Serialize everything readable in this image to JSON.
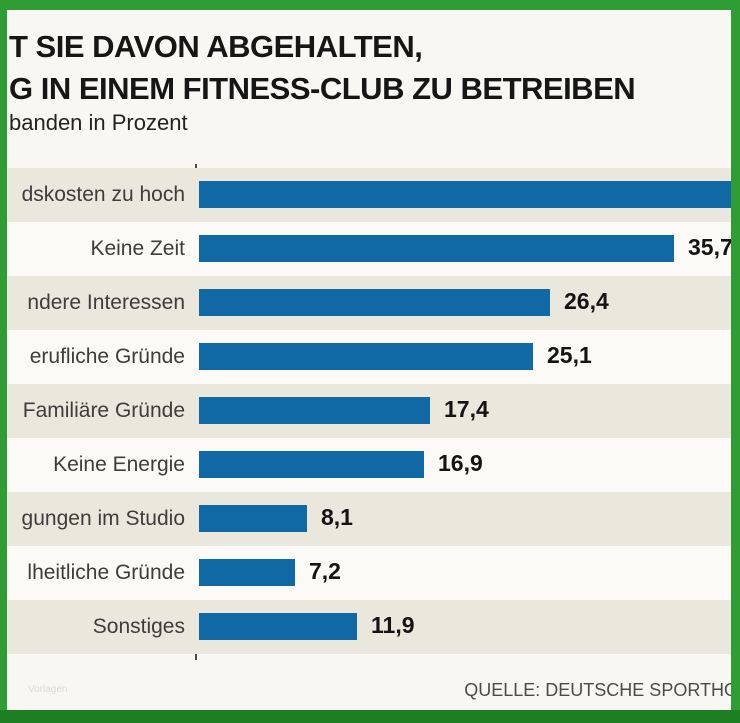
{
  "header": {
    "title_line1": "T SIE DAVON ABGEHALTEN,",
    "title_line2": "G IN EINEM FITNESS-CLUB ZU BETREIBEN",
    "subtitle": "banden in Prozent"
  },
  "chart_data": {
    "type": "bar",
    "orientation": "horizontal",
    "categories": [
      "dskosten zu hoch",
      "Keine Zeit",
      "ndere Interessen",
      "erufliche Gründe",
      "Familiäre Gründe",
      "Keine Energie",
      "gungen im Studio",
      "lheitliche Gründe",
      "Sonstiges"
    ],
    "values": [
      null,
      35.7,
      26.4,
      25.1,
      17.4,
      16.9,
      8.1,
      7.2,
      11.9
    ],
    "value_labels": [
      "",
      "35,7",
      "26,4",
      "25,1",
      "17,4",
      "16,9",
      "8,1",
      "7,2",
      "11,9"
    ],
    "first_bar_clipped_at_right_edge": true,
    "unit": "Prozent",
    "bar_color": "#1068a4",
    "row_band_colors": [
      "#eae7dd",
      "#fbfaf7"
    ],
    "axis_color": "#4a4a4a",
    "legend": "none",
    "grid": "off"
  },
  "footer": {
    "source": "QUELLE: DEUTSCHE SPORTHO",
    "watermark": "Vorlagen"
  },
  "colors": {
    "frame_green": "#2f9c34",
    "frame_bottom_green": "#1d7e22",
    "background": "#f8f7f3",
    "title_text": "#161616",
    "label_text": "#3d3d3d"
  }
}
